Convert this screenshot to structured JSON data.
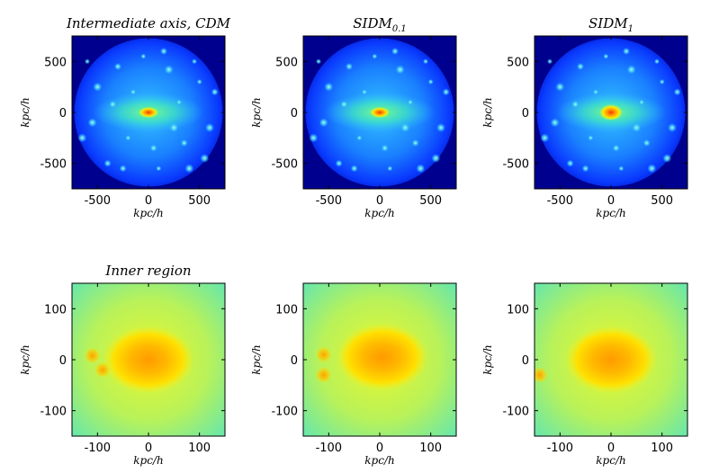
{
  "chart_data": [
    {
      "type": "heatmap",
      "title": "Intermediate axis, CDM",
      "title_sub": "",
      "xlabel": "kpc/h",
      "ylabel": "kpc/h",
      "xlim": [
        -750,
        750
      ],
      "ylim": [
        -750,
        750
      ],
      "xticks": [
        -500,
        0,
        500
      ],
      "yticks": [
        -500,
        0,
        500
      ],
      "xtick_labels": [
        "-500",
        "0",
        "500"
      ],
      "ytick_labels": [
        "-500",
        "0",
        "500"
      ],
      "colormap": "jet",
      "peak": {
        "x": 0,
        "y": 0
      },
      "substructures": [
        [
          -600,
          500
        ],
        [
          -300,
          450
        ],
        [
          200,
          420
        ],
        [
          500,
          300
        ],
        [
          650,
          200
        ],
        [
          -500,
          250
        ],
        [
          -200,
          -250
        ],
        [
          350,
          -300
        ],
        [
          -650,
          -250
        ],
        [
          100,
          -550
        ],
        [
          -400,
          -500
        ],
        [
          550,
          -450
        ],
        [
          300,
          100
        ],
        [
          -350,
          80
        ],
        [
          600,
          -150
        ],
        [
          -50,
          550
        ],
        [
          150,
          600
        ],
        [
          -550,
          -100
        ],
        [
          450,
          500
        ],
        [
          -250,
          -550
        ],
        [
          250,
          -150
        ],
        [
          -150,
          200
        ],
        [
          50,
          -350
        ],
        [
          400,
          -550
        ]
      ]
    },
    {
      "type": "heatmap",
      "title": "SIDM",
      "title_sub": "0.1",
      "xlabel": "kpc/h",
      "ylabel": "kpc/h",
      "xlim": [
        -750,
        750
      ],
      "ylim": [
        -750,
        750
      ],
      "xticks": [
        -500,
        0,
        500
      ],
      "yticks": [
        -500,
        0,
        500
      ],
      "xtick_labels": [
        "-500",
        "0",
        "500"
      ],
      "ytick_labels": [
        "-500",
        "0",
        "500"
      ],
      "colormap": "jet",
      "peak": {
        "x": 0,
        "y": 0
      },
      "substructures": [
        [
          -600,
          500
        ],
        [
          -300,
          450
        ],
        [
          200,
          420
        ],
        [
          500,
          300
        ],
        [
          650,
          200
        ],
        [
          -500,
          250
        ],
        [
          -200,
          -250
        ],
        [
          350,
          -300
        ],
        [
          -650,
          -250
        ],
        [
          100,
          -550
        ],
        [
          -400,
          -500
        ],
        [
          550,
          -450
        ],
        [
          300,
          100
        ],
        [
          -350,
          80
        ],
        [
          600,
          -150
        ],
        [
          -50,
          550
        ],
        [
          150,
          600
        ],
        [
          -550,
          -100
        ],
        [
          450,
          500
        ],
        [
          -250,
          -550
        ],
        [
          250,
          -150
        ],
        [
          -150,
          200
        ],
        [
          50,
          -350
        ],
        [
          400,
          -550
        ]
      ]
    },
    {
      "type": "heatmap",
      "title": "SIDM",
      "title_sub": "1",
      "xlabel": "kpc/h",
      "ylabel": "kpc/h",
      "xlim": [
        -750,
        750
      ],
      "ylim": [
        -750,
        750
      ],
      "xticks": [
        -500,
        0,
        500
      ],
      "yticks": [
        -500,
        0,
        500
      ],
      "xtick_labels": [
        "-500",
        "0",
        "500"
      ],
      "ytick_labels": [
        "-500",
        "0",
        "500"
      ],
      "colormap": "jet",
      "peak": {
        "x": 0,
        "y": 0
      },
      "substructures": [
        [
          -600,
          500
        ],
        [
          -300,
          450
        ],
        [
          200,
          420
        ],
        [
          500,
          300
        ],
        [
          650,
          200
        ],
        [
          -500,
          250
        ],
        [
          -200,
          -250
        ],
        [
          350,
          -300
        ],
        [
          -650,
          -250
        ],
        [
          100,
          -550
        ],
        [
          -400,
          -500
        ],
        [
          550,
          -450
        ],
        [
          300,
          100
        ],
        [
          -350,
          80
        ],
        [
          600,
          -150
        ],
        [
          -50,
          550
        ],
        [
          150,
          600
        ],
        [
          -550,
          -100
        ],
        [
          450,
          500
        ],
        [
          -250,
          -550
        ],
        [
          250,
          -150
        ],
        [
          -150,
          200
        ],
        [
          50,
          -350
        ],
        [
          400,
          -550
        ]
      ]
    },
    {
      "type": "heatmap",
      "title": "Inner region",
      "title_sub": "",
      "xlabel": "kpc/h",
      "ylabel": "kpc/h",
      "xlim": [
        -150,
        150
      ],
      "ylim": [
        -150,
        150
      ],
      "xticks": [
        -100,
        0,
        100
      ],
      "yticks": [
        -100,
        0,
        100
      ],
      "xtick_labels": [
        "-100",
        "0",
        "100"
      ],
      "ytick_labels": [
        "-100",
        "0",
        "100"
      ],
      "colormap": "jet",
      "peak": {
        "x": 0,
        "y": 0
      },
      "substructures": [
        [
          -110,
          8
        ],
        [
          -90,
          -20
        ]
      ]
    },
    {
      "type": "heatmap",
      "title": "",
      "title_sub": "",
      "xlabel": "kpc/h",
      "ylabel": "kpc/h",
      "xlim": [
        -150,
        150
      ],
      "ylim": [
        -150,
        150
      ],
      "xticks": [
        -100,
        0,
        100
      ],
      "yticks": [
        -100,
        0,
        100
      ],
      "xtick_labels": [
        "-100",
        "0",
        "100"
      ],
      "ytick_labels": [
        "-100",
        "0",
        "100"
      ],
      "colormap": "jet",
      "peak": {
        "x": 5,
        "y": 5
      },
      "substructures": [
        [
          -110,
          10
        ],
        [
          -110,
          -30
        ]
      ]
    },
    {
      "type": "heatmap",
      "title": "",
      "title_sub": "",
      "xlabel": "kpc/h",
      "ylabel": "kpc/h",
      "xlim": [
        -150,
        150
      ],
      "ylim": [
        -150,
        150
      ],
      "xticks": [
        -100,
        0,
        100
      ],
      "yticks": [
        -100,
        0,
        100
      ],
      "xtick_labels": [
        "-100",
        "0",
        "100"
      ],
      "ytick_labels": [
        "-100",
        "0",
        "100"
      ],
      "colormap": "jet",
      "peak": {
        "x": 0,
        "y": 0
      },
      "substructures": [
        [
          -140,
          -30
        ]
      ]
    }
  ]
}
